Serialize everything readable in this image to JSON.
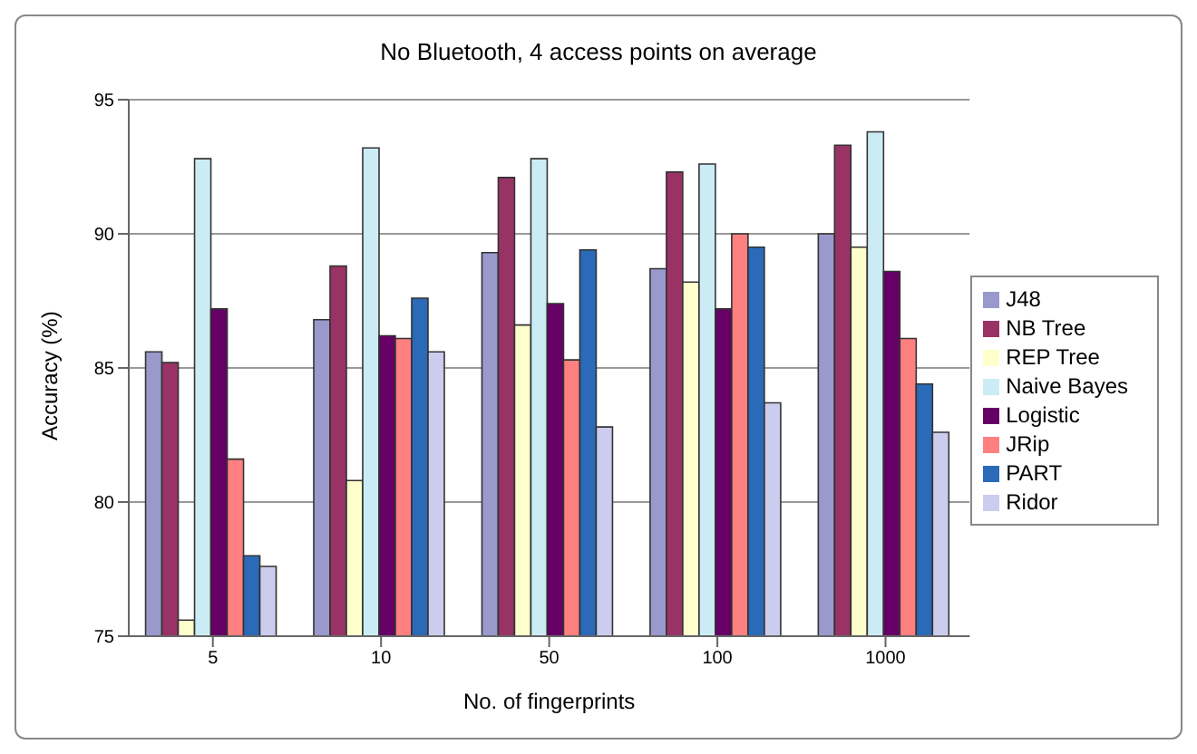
{
  "chart_data": {
    "type": "bar",
    "title": "No Bluetooth, 4 access points on average",
    "xlabel": "No. of fingerprints",
    "ylabel": "Accuracy (%)",
    "categories": [
      "5",
      "10",
      "50",
      "100",
      "1000"
    ],
    "series": [
      {
        "name": "J48",
        "color": "#9999cc",
        "values": [
          85.6,
          86.8,
          89.3,
          88.7,
          90.0
        ]
      },
      {
        "name": "NB Tree",
        "color": "#993366",
        "values": [
          85.2,
          88.8,
          92.1,
          92.3,
          93.3
        ]
      },
      {
        "name": "REP Tree",
        "color": "#ffffcc",
        "values": [
          75.6,
          80.8,
          86.6,
          88.2,
          89.5
        ]
      },
      {
        "name": "Naive Bayes",
        "color": "#ccecf5",
        "values": [
          92.8,
          93.2,
          92.8,
          92.6,
          93.8
        ]
      },
      {
        "name": "Logistic",
        "color": "#660066",
        "values": [
          87.2,
          86.2,
          87.4,
          87.2,
          88.6
        ]
      },
      {
        "name": "JRip",
        "color": "#ff8080",
        "values": [
          81.6,
          86.1,
          85.3,
          90.0,
          86.1
        ]
      },
      {
        "name": "PART",
        "color": "#2a6ab8",
        "values": [
          78.0,
          87.6,
          89.4,
          89.5,
          84.4
        ]
      },
      {
        "name": "Ridor",
        "color": "#ccccee",
        "values": [
          77.6,
          85.6,
          82.8,
          83.7,
          82.6
        ]
      }
    ],
    "ylim": [
      75,
      95
    ],
    "yticks": [
      75,
      80,
      85,
      90,
      95
    ],
    "grid": "y",
    "legend": "right"
  }
}
